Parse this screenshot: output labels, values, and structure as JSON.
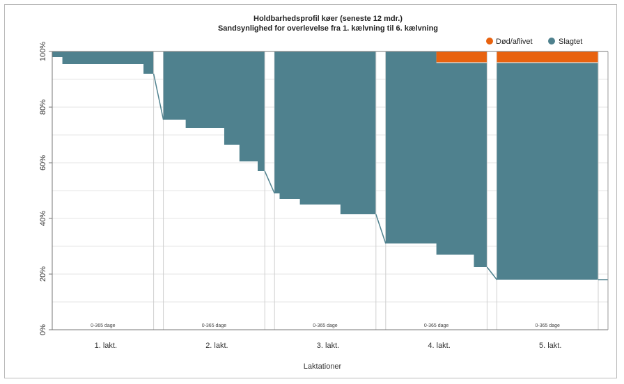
{
  "chart_data": {
    "type": "area",
    "title": "Holdbarhedsprofil køer (seneste 12 mdr.)",
    "subtitle": "Sandsynlighed for overlevelse fra 1. kælvning til 6. kælvning",
    "xlabel": "Laktationer",
    "ylabel": "",
    "ylim": [
      0,
      100
    ],
    "yticks": [
      "0%",
      "20%",
      "40%",
      "60%",
      "80%",
      "100%"
    ],
    "categories": [
      "1. lakt.",
      "2. lakt.",
      "3. lakt.",
      "4. lakt.",
      "5. lakt."
    ],
    "period_label": "0-365 dage",
    "grid": true,
    "legend_position": "top-right",
    "series": [
      {
        "name": "Død/aflivet",
        "color": "#e8620f",
        "values": [
          0,
          0,
          0,
          4,
          4
        ]
      },
      {
        "name": "Slagtet",
        "color": "#4f818e",
        "values": [
          8,
          20,
          18,
          11,
          0
        ]
      }
    ],
    "survival_start": [
      100,
      75.5,
      49,
      31,
      18
    ],
    "survival_end": [
      92,
      57,
      41.5,
      22.5,
      18
    ],
    "step_profiles": [
      [
        [
          0,
          98
        ],
        [
          0.1,
          95.5
        ],
        [
          0.9,
          92
        ]
      ],
      [
        [
          0,
          75.5
        ],
        [
          0.22,
          72.5
        ],
        [
          0.6,
          66.5
        ],
        [
          0.75,
          60.5
        ],
        [
          0.93,
          57
        ]
      ],
      [
        [
          0,
          49
        ],
        [
          0.05,
          47
        ],
        [
          0.25,
          45
        ],
        [
          0.65,
          41.5
        ]
      ],
      [
        [
          0,
          31
        ],
        [
          0.5,
          27
        ],
        [
          0.87,
          22.5
        ]
      ],
      [
        [
          0,
          18
        ]
      ]
    ],
    "dead_profile": [
      [],
      [],
      [],
      [
        [
          0.5,
          96
        ]
      ],
      [
        [
          0,
          96
        ]
      ]
    ]
  }
}
